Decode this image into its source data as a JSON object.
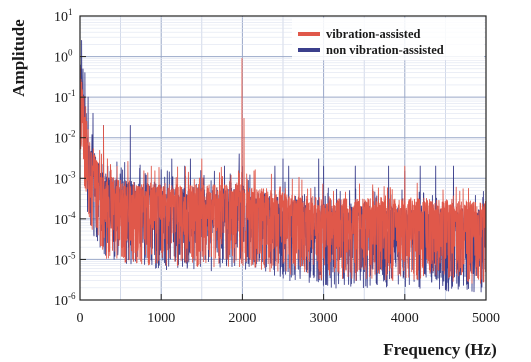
{
  "chart_data": {
    "type": "line",
    "title": "",
    "xlabel": "Frequency (Hz)",
    "ylabel": "Amplitude",
    "xlim": [
      0,
      5000
    ],
    "ylim_log10": [
      -6,
      1
    ],
    "yscale": "log",
    "grid": true,
    "legend_position": "top-right",
    "x_ticks": [
      {
        "value": 0,
        "label": "0"
      },
      {
        "value": 1000,
        "label": "1000"
      },
      {
        "value": 2000,
        "label": "2000"
      },
      {
        "value": 3000,
        "label": "3000"
      },
      {
        "value": 4000,
        "label": "4000"
      },
      {
        "value": 5000,
        "label": "5000"
      }
    ],
    "y_ticks": [
      {
        "exp": 1,
        "base": "10",
        "power": "1"
      },
      {
        "exp": 0,
        "base": "10",
        "power": "0"
      },
      {
        "exp": -1,
        "base": "10",
        "power": "-1"
      },
      {
        "exp": -2,
        "base": "10",
        "power": "-2"
      },
      {
        "exp": -3,
        "base": "10",
        "power": "-3"
      },
      {
        "exp": -4,
        "base": "10",
        "power": "-4"
      },
      {
        "exp": -5,
        "base": "10",
        "power": "-5"
      },
      {
        "exp": -6,
        "base": "10",
        "power": "-6"
      }
    ],
    "series": [
      {
        "name": "vibration-assisted",
        "color": "#e0584a",
        "floor_profile": [
          [
            0,
            0.3
          ],
          [
            100,
            0.003
          ],
          [
            300,
            0.0004
          ],
          [
            1000,
            0.00025
          ],
          [
            2000,
            0.00025
          ],
          [
            2500,
            0.00017
          ],
          [
            3000,
            0.00012
          ],
          [
            4000,
            0.00012
          ],
          [
            5000,
            0.0001
          ]
        ],
        "peaks": [
          {
            "x": 1995,
            "y": 0.9
          },
          {
            "x": 2020,
            "y": 0.03
          },
          {
            "x": 4000,
            "y": 0.002
          },
          {
            "x": 1500,
            "y": 0.003
          },
          {
            "x": 290,
            "y": 0.02
          }
        ]
      },
      {
        "name": "non vibration-assisted",
        "color": "#3b3f8c",
        "floor_profile": [
          [
            0,
            0.4
          ],
          [
            100,
            0.003
          ],
          [
            300,
            0.0004
          ],
          [
            1000,
            0.00022
          ],
          [
            2000,
            0.0002
          ],
          [
            2500,
            0.00012
          ],
          [
            3000,
            8e-05
          ],
          [
            4000,
            7e-05
          ],
          [
            5000,
            6e-05
          ]
        ],
        "peaks": [
          {
            "x": 20,
            "y": 2.5
          },
          {
            "x": 60,
            "y": 0.4
          },
          {
            "x": 100,
            "y": 0.1
          },
          {
            "x": 160,
            "y": 0.04
          },
          {
            "x": 290,
            "y": 0.02
          },
          {
            "x": 620,
            "y": 0.02
          },
          {
            "x": 1130,
            "y": 0.003
          },
          {
            "x": 1290,
            "y": 0.002
          },
          {
            "x": 1360,
            "y": 0.003
          },
          {
            "x": 1780,
            "y": 0.002
          },
          {
            "x": 1960,
            "y": 0.004
          },
          {
            "x": 2000,
            "y": 0.002
          },
          {
            "x": 2400,
            "y": 0.002
          },
          {
            "x": 2500,
            "y": 0.003
          },
          {
            "x": 2570,
            "y": 0.002
          },
          {
            "x": 2940,
            "y": 0.003
          },
          {
            "x": 3000,
            "y": 0.002
          },
          {
            "x": 3390,
            "y": 0.002
          },
          {
            "x": 3800,
            "y": 0.002
          },
          {
            "x": 4000,
            "y": 0.0015
          },
          {
            "x": 4190,
            "y": 0.002
          },
          {
            "x": 4380,
            "y": 0.002
          },
          {
            "x": 4600,
            "y": 0.002
          }
        ]
      }
    ]
  }
}
